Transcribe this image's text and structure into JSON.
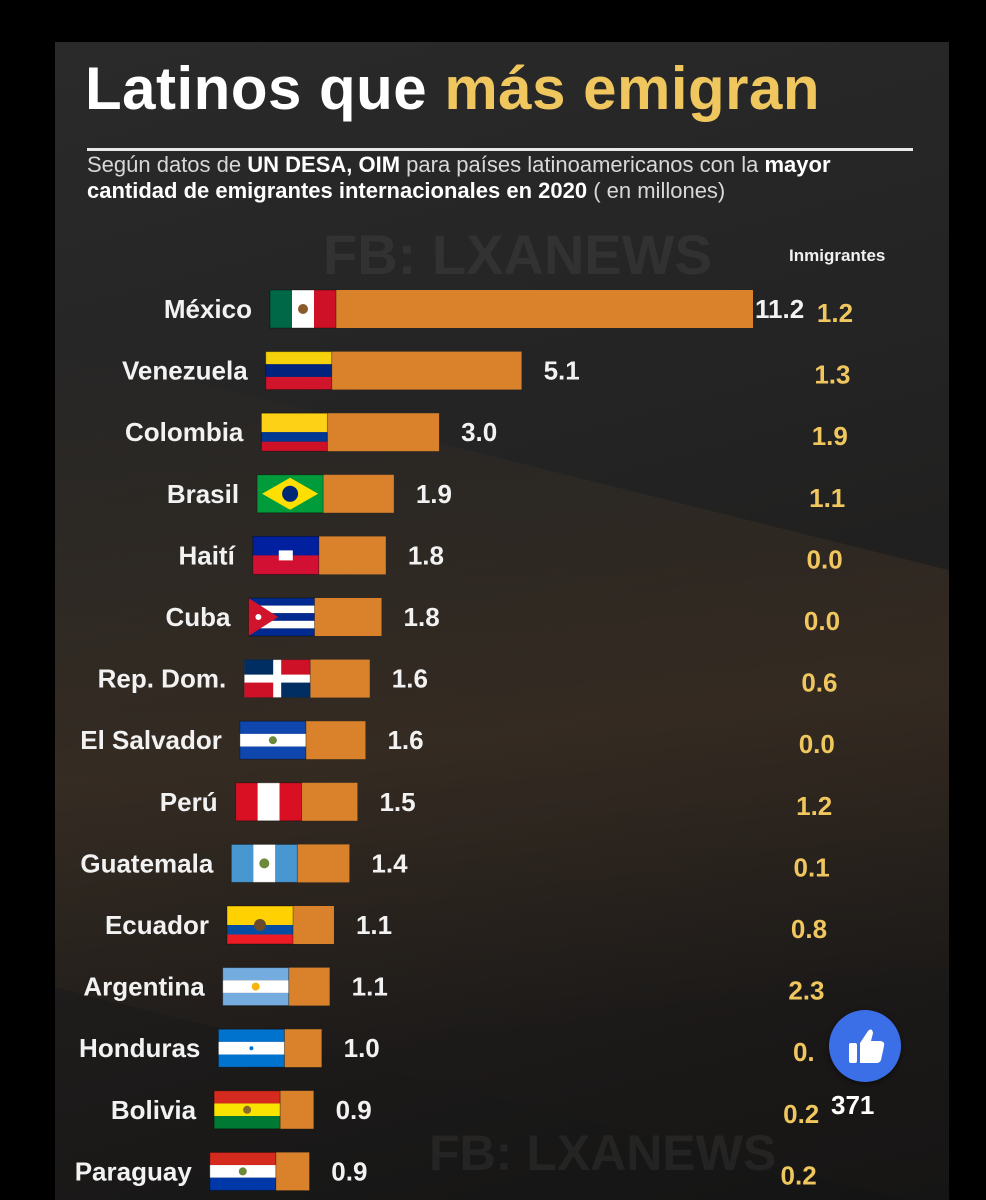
{
  "header": {
    "title_part1": "Latinos que ",
    "title_part2": "más emigran",
    "subtitle_parts": [
      {
        "text": "Según datos  de ",
        "bold": false
      },
      {
        "text": "UN DESA, OIM",
        "bold": true
      },
      {
        "text": " para países latinoamericanos con la ",
        "bold": false
      },
      {
        "text": "mayor cantidad de emigrantes internacionales en 2020",
        "bold": true
      },
      {
        "text": " ( en millones)",
        "bold": false
      }
    ]
  },
  "watermark": "FB: LXANEWS",
  "reaction": {
    "icon": "thumbs-up-icon",
    "count": "371"
  },
  "colors": {
    "bar": "#d9822b",
    "highlight": "#f0c75e"
  },
  "chart_data": {
    "type": "bar",
    "orientation": "horizontal",
    "title": "Latinos que más emigran",
    "xlabel": "",
    "ylabel": "",
    "xlim": [
      0,
      11.2
    ],
    "grid": false,
    "categories": [
      "México",
      "Venezuela",
      "Colombia",
      "Brasil",
      "Haití",
      "Cuba",
      "Rep. Dom.",
      "El Salvador",
      "Perú",
      "Guatemala",
      "Ecuador",
      "Argentina",
      "Honduras",
      "Bolivia",
      "Paraguay"
    ],
    "series": [
      {
        "values": [
          11.2,
          5.1,
          3.0,
          1.9,
          1.8,
          1.8,
          1.6,
          1.6,
          1.5,
          1.4,
          1.1,
          1.1,
          1.0,
          0.9,
          0.9
        ]
      }
    ],
    "value_labels": [
      "11.2",
      "5.1",
      "3.0",
      "1.9",
      "1.8",
      "1.8",
      "1.6",
      "1.6",
      "1.5",
      "1.4",
      "1.1",
      "1.1",
      "1.0",
      "0.9",
      "0.9"
    ],
    "secondary_column": {
      "header": "Inmigrantes",
      "labels": [
        "1.2",
        "1.3",
        "1.9",
        "1.1",
        "0.0",
        "0.0",
        "0.6",
        "0.0",
        "1.2",
        "0.1",
        "0.8",
        "2.3",
        "0.",
        "0.2",
        "0.2"
      ]
    },
    "flags": [
      "mexico-flag-icon",
      "venezuela-flag-icon",
      "colombia-flag-icon",
      "brazil-flag-icon",
      "haiti-flag-icon",
      "cuba-flag-icon",
      "dominican-republic-flag-icon",
      "el-salvador-flag-icon",
      "peru-flag-icon",
      "guatemala-flag-icon",
      "ecuador-flag-icon",
      "argentina-flag-icon",
      "honduras-flag-icon",
      "bolivia-flag-icon",
      "paraguay-flag-icon"
    ]
  }
}
